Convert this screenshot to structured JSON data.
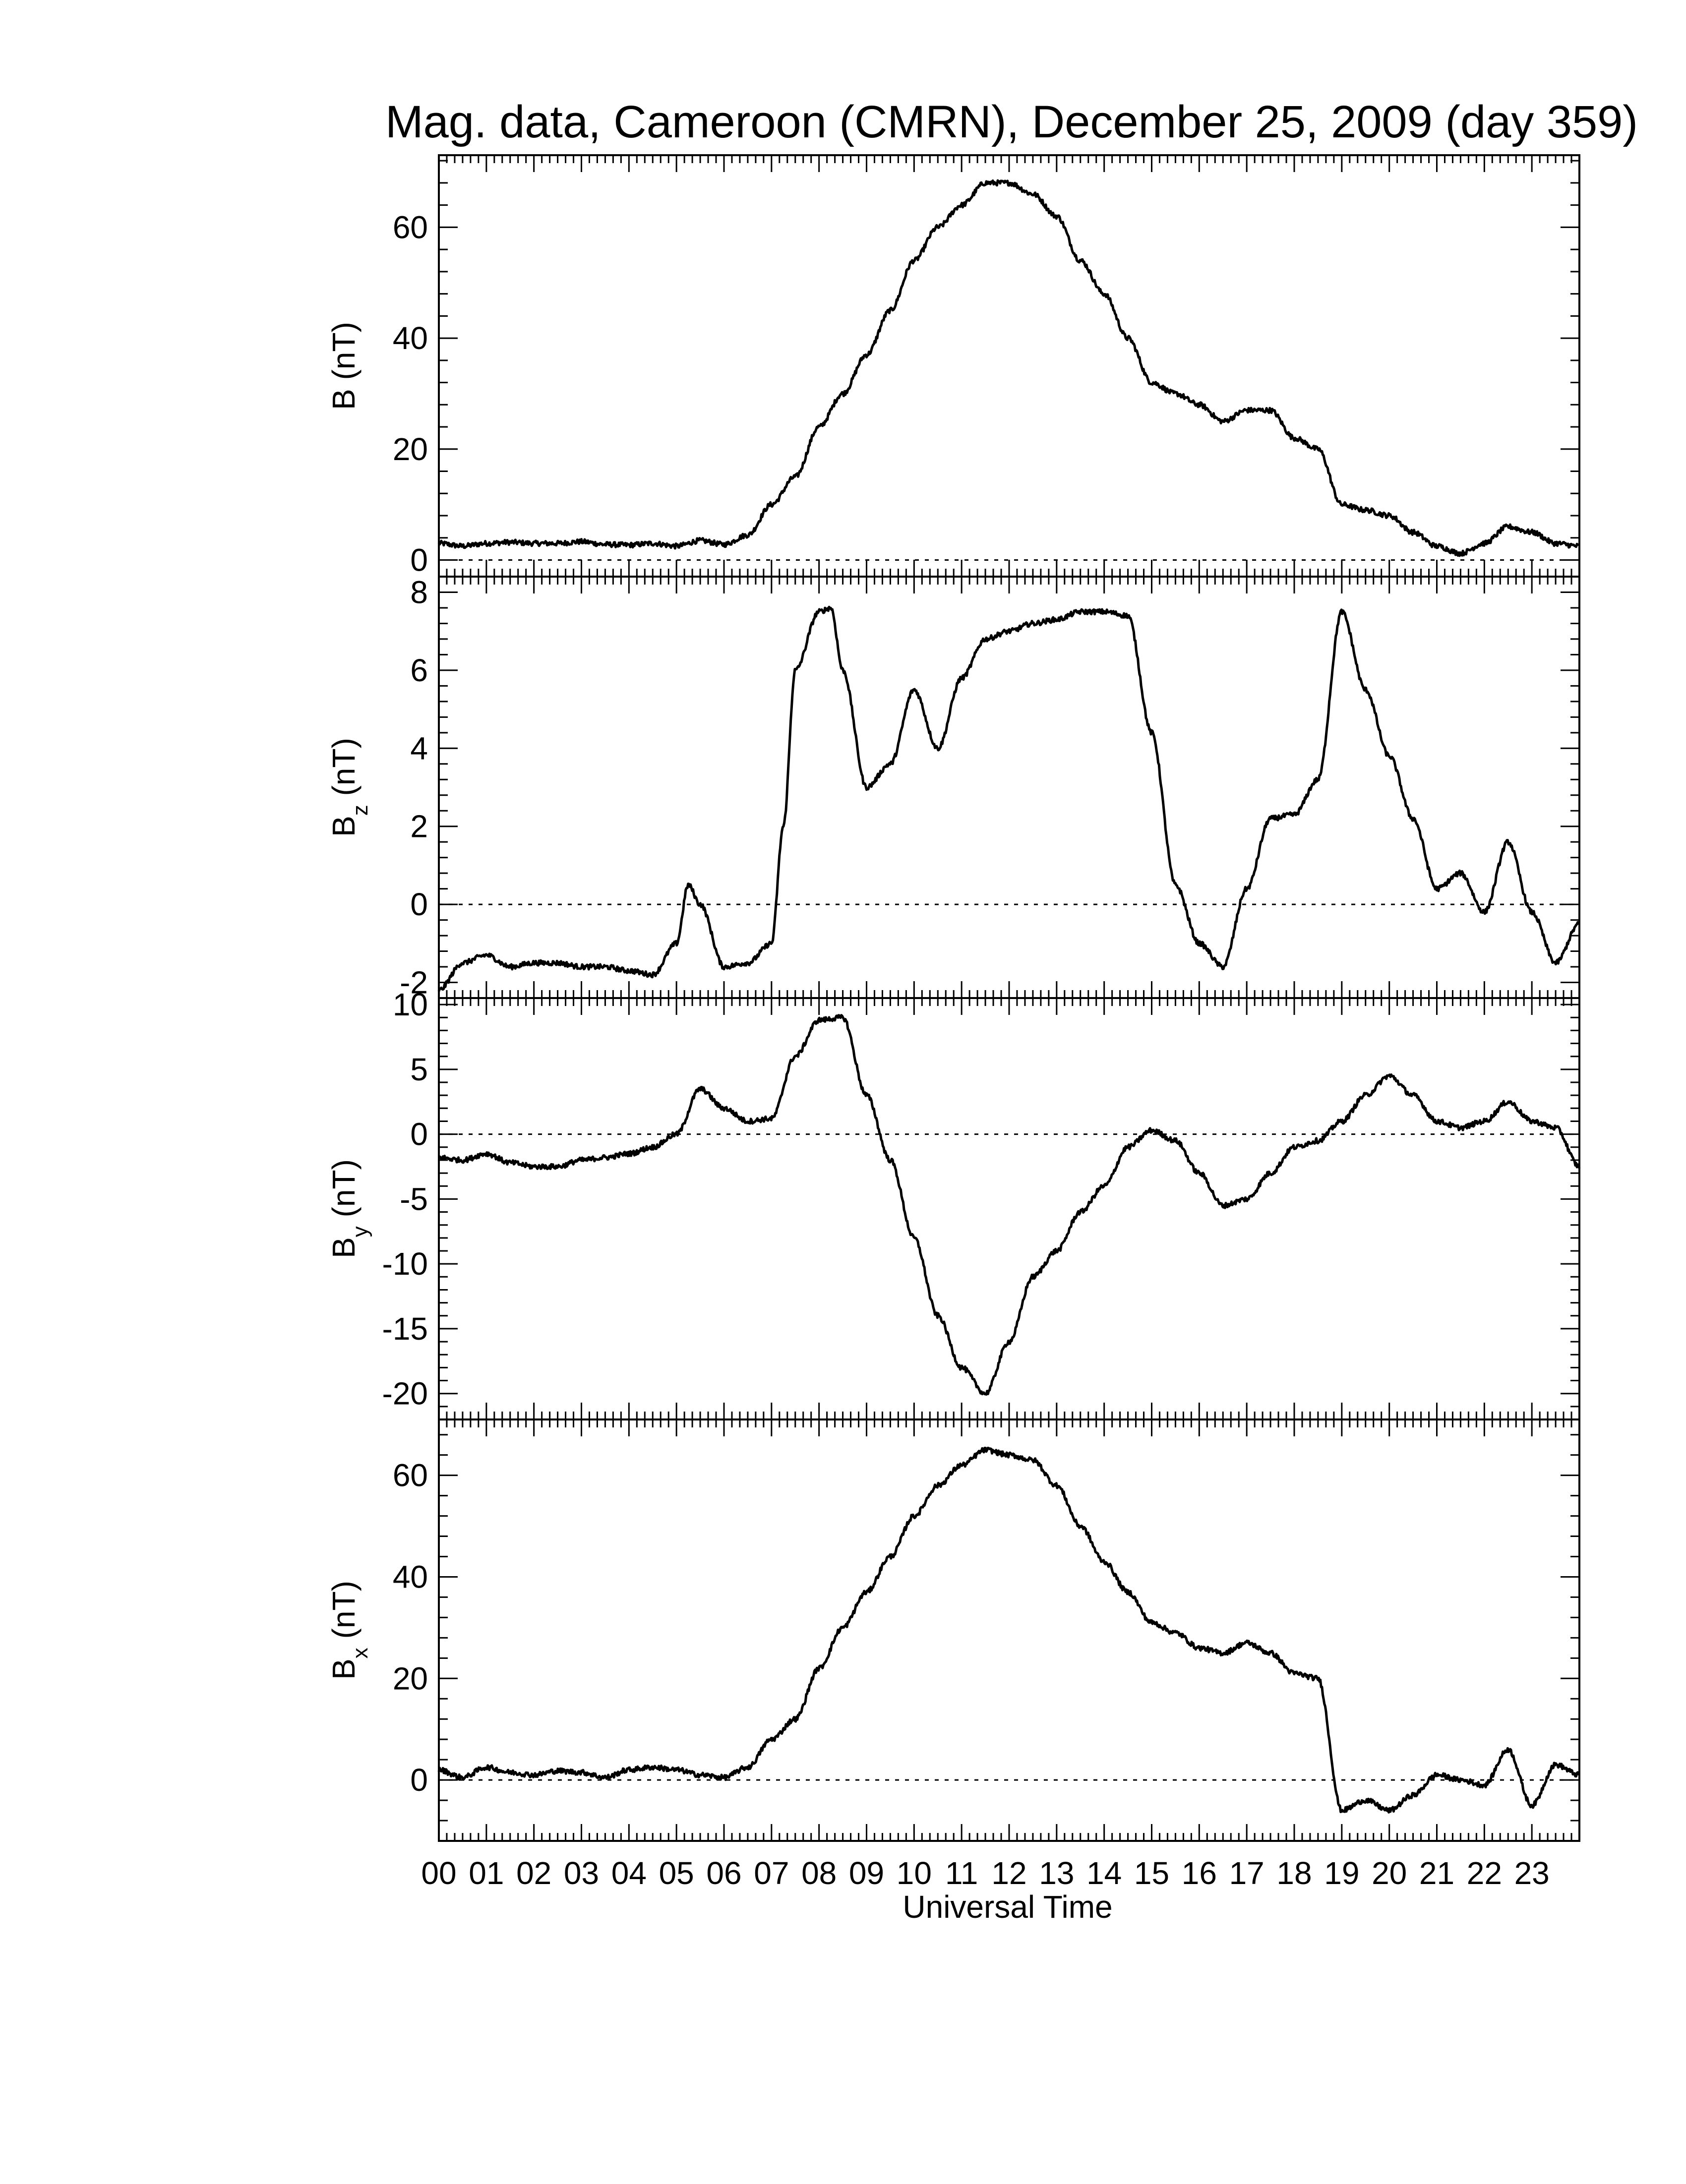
{
  "title": "Mag. data, Cameroon (CMRN), December 25, 2009 (day 359)",
  "colors": {
    "line": "#000000",
    "background": "#ffffff",
    "zero_line": "#000000"
  },
  "chart_data": [
    {
      "type": "line",
      "ylabel": "B (nT)",
      "ylabel_main": "B",
      "ylabel_sub": "",
      "ylabel_unit": " (nT)",
      "ylim": [
        -3,
        73
      ],
      "yticks": [
        0,
        20,
        40,
        60
      ],
      "zero_line": true,
      "x": [
        0,
        0.5,
        1,
        1.5,
        2,
        2.5,
        3,
        3.5,
        4,
        4.5,
        5,
        5.5,
        6,
        6.5,
        7,
        7.5,
        8,
        8.5,
        9,
        9.5,
        10,
        10.5,
        11,
        11.5,
        12,
        12.5,
        13,
        13.5,
        14,
        14.5,
        15,
        15.5,
        16,
        16.5,
        17,
        17.5,
        18,
        18.5,
        19,
        19.5,
        20,
        20.5,
        21,
        21.5,
        22,
        22.5,
        23,
        23.5,
        24
      ],
      "values": [
        3,
        2.5,
        3,
        3.2,
        3,
        3,
        3.3,
        2.8,
        2.7,
        3,
        2.5,
        3.5,
        2.8,
        4.5,
        10,
        15,
        24,
        30,
        37,
        45,
        54,
        60,
        64,
        68,
        68,
        66,
        62,
        54,
        48,
        40,
        32,
        30,
        28,
        25,
        27,
        27,
        22,
        20,
        10,
        9,
        8,
        5,
        2.5,
        1.2,
        3,
        6,
        5,
        3,
        2.5
      ]
    },
    {
      "type": "line",
      "ylabel": "Bz (nT)",
      "ylabel_main": "B",
      "ylabel_sub": "z",
      "ylabel_unit": " (nT)",
      "ylim": [
        -2.4,
        8.4
      ],
      "yticks": [
        -2,
        0,
        2,
        4,
        6,
        8
      ],
      "zero_line": true,
      "x": [
        0,
        0.5,
        1,
        1.5,
        2,
        2.5,
        3,
        3.5,
        4,
        4.5,
        5,
        5.25,
        5.5,
        6,
        6.5,
        7,
        7.25,
        7.5,
        8,
        8.25,
        8.5,
        9,
        9.5,
        10,
        10.5,
        11,
        11.5,
        12,
        12.5,
        13,
        13.5,
        14,
        14.5,
        15,
        15.5,
        16,
        16.5,
        17,
        17.5,
        18,
        18.5,
        19,
        19.5,
        20,
        20.5,
        21,
        21.5,
        22,
        22.5,
        23,
        23.5,
        24
      ],
      "values": [
        -2.2,
        -1.5,
        -1.3,
        -1.6,
        -1.5,
        -1.5,
        -1.6,
        -1.6,
        -1.7,
        -1.8,
        -1,
        0.5,
        0,
        -1.6,
        -1.5,
        -1,
        2,
        6,
        7.5,
        7.6,
        6,
        3,
        3.6,
        5.5,
        4,
        5.8,
        6.8,
        7,
        7.2,
        7.3,
        7.5,
        7.5,
        7.4,
        4.4,
        0.5,
        -1,
        -1.6,
        0.4,
        2.2,
        2.3,
        3.2,
        7.5,
        5.5,
        3.8,
        2.2,
        0.4,
        0.8,
        -0.2,
        1.6,
        -0.2,
        -1.5,
        -0.5
      ]
    },
    {
      "type": "line",
      "ylabel": "By (nT)",
      "ylabel_main": "B",
      "ylabel_sub": "y",
      "ylabel_unit": " (nT)",
      "ylim": [
        -22,
        10.5
      ],
      "yticks": [
        -20,
        -15,
        -10,
        -5,
        0,
        5,
        10
      ],
      "zero_line": true,
      "x": [
        0,
        0.5,
        1,
        1.5,
        2,
        2.5,
        3,
        3.5,
        4,
        4.5,
        5,
        5.5,
        6,
        6.5,
        7,
        7.5,
        8,
        8.5,
        9,
        9.5,
        10,
        10.5,
        11,
        11.5,
        12,
        12.5,
        13,
        13.5,
        14,
        14.5,
        15,
        15.5,
        16,
        16.5,
        17,
        17.5,
        18,
        18.5,
        19,
        19.5,
        20,
        20.5,
        21,
        21.5,
        22,
        22.5,
        23,
        23.5,
        24
      ],
      "values": [
        -1.8,
        -2,
        -1.5,
        -2.2,
        -2.5,
        -2.5,
        -2,
        -1.8,
        -1.5,
        -1,
        0,
        3.5,
        2,
        1,
        1.2,
        6,
        8.8,
        9,
        3,
        -2,
        -8,
        -14,
        -18,
        -20,
        -16,
        -11,
        -9,
        -6,
        -4,
        -1,
        0.3,
        -0.5,
        -3,
        -5.5,
        -5,
        -3,
        -1,
        -0.5,
        1,
        3,
        4.5,
        3,
        1,
        0.5,
        1,
        2.5,
        1,
        0.5,
        -2.5
      ]
    },
    {
      "type": "line",
      "ylabel": "Bx (nT)",
      "ylabel_main": "B",
      "ylabel_sub": "x",
      "ylabel_unit": " (nT)",
      "ylim": [
        -12,
        71
      ],
      "yticks": [
        0,
        20,
        40,
        60
      ],
      "zero_line": true,
      "x": [
        0,
        0.5,
        1,
        1.5,
        2,
        2.5,
        3,
        3.5,
        4,
        4.5,
        5,
        5.5,
        6,
        6.5,
        7,
        7.5,
        8,
        8.5,
        9,
        9.5,
        10,
        10.5,
        11,
        11.5,
        12,
        12.5,
        13,
        13.5,
        14,
        14.5,
        15,
        15.5,
        16,
        16.5,
        17,
        17.5,
        18,
        18.5,
        19,
        19.5,
        20,
        20.5,
        21,
        21.5,
        22,
        22.5,
        23,
        23.5,
        24
      ],
      "values": [
        2,
        0.5,
        2.5,
        1.5,
        1,
        1.8,
        1.5,
        0.5,
        2,
        2.5,
        2,
        1,
        0.5,
        2.5,
        8,
        12,
        22,
        30,
        37,
        44,
        52,
        58,
        62,
        65,
        64,
        63,
        58,
        50,
        43,
        37,
        31,
        29,
        26,
        25,
        27,
        25,
        21,
        20,
        -6,
        -4,
        -6,
        -3,
        1,
        0,
        -1,
        6,
        -5,
        3,
        1
      ]
    }
  ],
  "x_axis": {
    "label": "Universal Time",
    "xlim": [
      0,
      24
    ],
    "tick_labels": [
      "00",
      "01",
      "02",
      "03",
      "04",
      "05",
      "06",
      "07",
      "08",
      "09",
      "10",
      "11",
      "12",
      "13",
      "14",
      "15",
      "16",
      "17",
      "18",
      "19",
      "20",
      "21",
      "22",
      "23"
    ]
  }
}
